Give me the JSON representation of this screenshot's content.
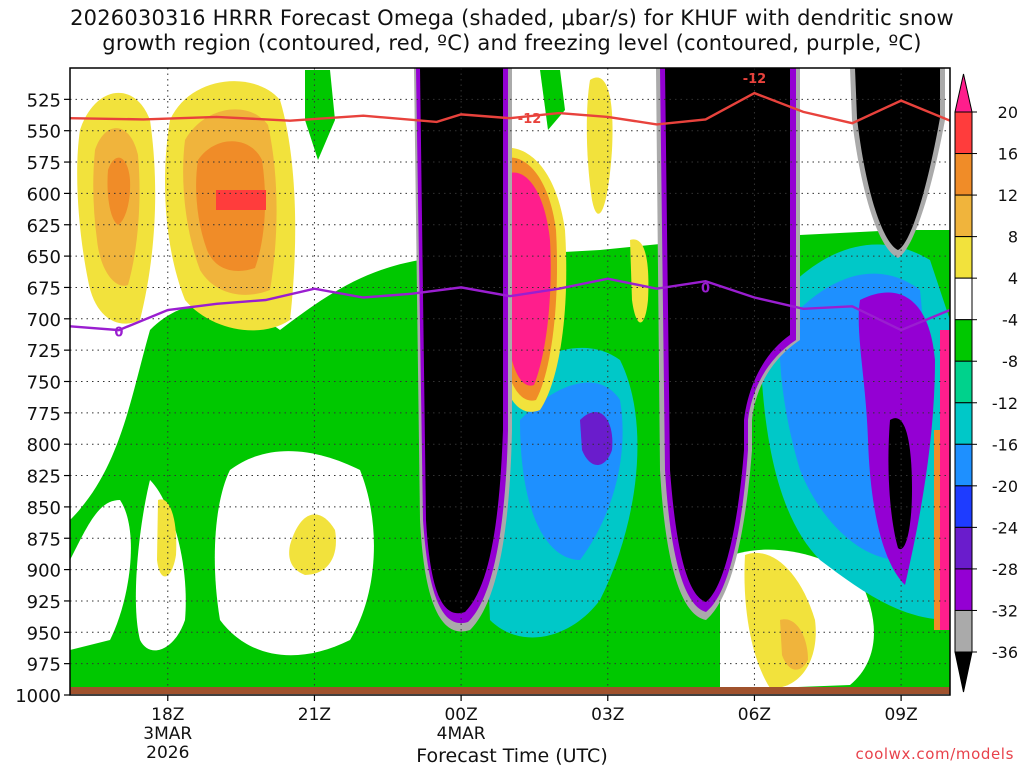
{
  "title_line1": "2026030316 HRRR Forecast Omega (shaded, μbar/s) for KHUF with dendritic snow",
  "title_line2": "growth region (contoured, red, ºC) and freezing level (contoured, purple, ºC)",
  "credit": "coolwx.com/models",
  "chart_data": {
    "type": "heatmap",
    "xlabel": "Forecast Time (UTC)",
    "ylabel": "",
    "x_ticks": [
      {
        "hour": 2,
        "label": "18Z",
        "sub1": "3MAR",
        "sub2": "2026"
      },
      {
        "hour": 5,
        "label": "21Z",
        "sub1": "",
        "sub2": ""
      },
      {
        "hour": 8,
        "label": "00Z",
        "sub1": "4MAR",
        "sub2": ""
      },
      {
        "hour": 11,
        "label": "03Z",
        "sub1": "",
        "sub2": ""
      },
      {
        "hour": 14,
        "label": "06Z",
        "sub1": "",
        "sub2": ""
      },
      {
        "hour": 17,
        "label": "09Z",
        "sub1": "",
        "sub2": ""
      }
    ],
    "x_range_hours": [
      0,
      18
    ],
    "y_levels_hPa": [
      525,
      550,
      575,
      600,
      625,
      650,
      675,
      700,
      725,
      750,
      775,
      800,
      825,
      850,
      875,
      900,
      925,
      950,
      975,
      1000
    ],
    "y_range_hPa": [
      500,
      1000
    ],
    "colorbar": {
      "levels": [
        -36,
        -32,
        -28,
        -24,
        -20,
        -16,
        -12,
        -8,
        -4,
        4,
        8,
        12,
        16,
        20
      ],
      "labels": [
        "20",
        "16",
        "12",
        "8",
        "4",
        "-4",
        "-8",
        "-12",
        "-16",
        "-20",
        "-24",
        "-28",
        "-32",
        "-36"
      ],
      "colors": [
        "#000000",
        "#aaaaaa",
        "#9400d3",
        "#6a1ccc",
        "#1e3cff",
        "#1e90ff",
        "#00c8c8",
        "#00d28c",
        "#00c800",
        "#ffffff",
        "#f2e23c",
        "#f0b43c",
        "#f08c28",
        "#ff3c3c",
        "#ff1e8c"
      ]
    },
    "contours": [
      {
        "name": "dendritic snow growth region",
        "label": "-12",
        "color": "#e8423c",
        "points": [
          [
            0,
            540
          ],
          [
            1.5,
            541
          ],
          [
            3,
            539
          ],
          [
            4.5,
            542
          ],
          [
            6,
            538
          ],
          [
            7.5,
            543
          ],
          [
            8,
            537
          ],
          [
            9,
            540
          ],
          [
            10,
            536
          ],
          [
            11,
            539
          ],
          [
            12,
            545
          ],
          [
            13,
            541
          ],
          [
            14,
            520
          ],
          [
            15,
            535
          ],
          [
            16,
            544
          ],
          [
            17,
            526
          ],
          [
            18,
            542
          ]
        ]
      },
      {
        "name": "freezing level",
        "label": "0",
        "color": "#9a1ed0",
        "points": [
          [
            0,
            706
          ],
          [
            1,
            709
          ],
          [
            2,
            693
          ],
          [
            3,
            688
          ],
          [
            4,
            685
          ],
          [
            5,
            676
          ],
          [
            6,
            683
          ],
          [
            7,
            680
          ],
          [
            8,
            675
          ],
          [
            9,
            682
          ],
          [
            10,
            676
          ],
          [
            11,
            668
          ],
          [
            12,
            676
          ],
          [
            13,
            670
          ],
          [
            14,
            683
          ],
          [
            15,
            692
          ],
          [
            16,
            690
          ],
          [
            17,
            709
          ],
          [
            18,
            693
          ]
        ]
      }
    ],
    "contour_labels": [
      {
        "series": "dendritic snow growth region",
        "text": "-12",
        "hour": 9.4,
        "hPa": 540
      },
      {
        "series": "dendritic snow growth region",
        "text": "-12",
        "hour": 14.0,
        "hPa": 508
      },
      {
        "series": "freezing level",
        "text": "0",
        "hour": 1.0,
        "hPa": 710
      },
      {
        "series": "freezing level",
        "text": "0",
        "hour": 13.0,
        "hPa": 675
      }
    ]
  }
}
